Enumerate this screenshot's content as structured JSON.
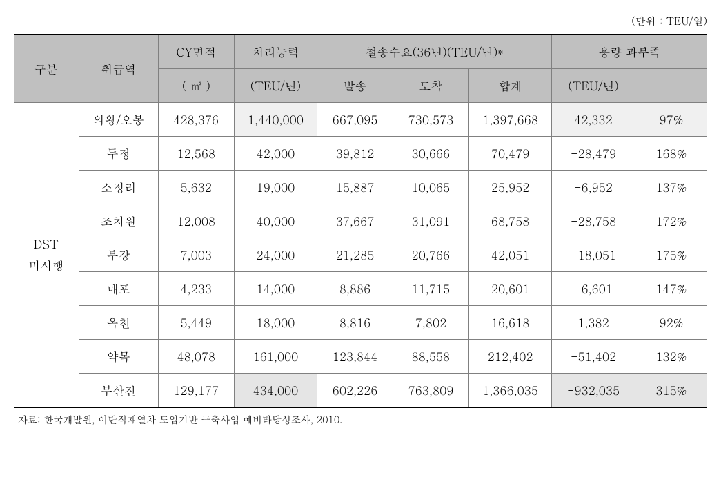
{
  "unit_label": "(단위 : TEU/일)",
  "headers": {
    "gubun": "구분",
    "station": "취급역",
    "cy_area": "CY면적",
    "cy_area_unit": "( ㎡ )",
    "capacity": "처리능력",
    "capacity_unit": "(TEU/년)",
    "demand_group": "철송수요(36년)(TEU/년)*",
    "demand_send": "발송",
    "demand_arrive": "도착",
    "demand_total": "합계",
    "surplus_group": "용량 과부족",
    "surplus_unit": "(TEU/년)"
  },
  "category": "DST\n미시행",
  "rows": [
    {
      "station": "의왕/오봉",
      "area": "428,376",
      "capacity": "1,440,000",
      "send": "667,095",
      "arrive": "730,573",
      "total": "1,397,668",
      "surplus_val": "42,332",
      "surplus_pct": "97%",
      "hl_capacity": true,
      "hl_surplus_val": true,
      "hl_surplus_pct": true,
      "light": true
    },
    {
      "station": "두정",
      "area": "12,568",
      "capacity": "42,000",
      "send": "39,812",
      "arrive": "30,666",
      "total": "70,479",
      "surplus_val": "-28,479",
      "surplus_pct": "168%"
    },
    {
      "station": "소정리",
      "area": "5,632",
      "capacity": "19,000",
      "send": "15,887",
      "arrive": "10,065",
      "total": "25,952",
      "surplus_val": "-6,952",
      "surplus_pct": "137%"
    },
    {
      "station": "조치원",
      "area": "12,008",
      "capacity": "40,000",
      "send": "37,667",
      "arrive": "31,091",
      "total": "68,758",
      "surplus_val": "-28,758",
      "surplus_pct": "172%"
    },
    {
      "station": "부강",
      "area": "7,003",
      "capacity": "24,000",
      "send": "21,285",
      "arrive": "20,766",
      "total": "42,051",
      "surplus_val": "-18,051",
      "surplus_pct": "175%"
    },
    {
      "station": "매포",
      "area": "4,233",
      "capacity": "14,000",
      "send": "8,886",
      "arrive": "11,715",
      "total": "20,601",
      "surplus_val": "-6,601",
      "surplus_pct": "147%"
    },
    {
      "station": "옥천",
      "area": "5,449",
      "capacity": "18,000",
      "send": "8,816",
      "arrive": "7,802",
      "total": "16,618",
      "surplus_val": "1,382",
      "surplus_pct": "92%"
    },
    {
      "station": "약목",
      "area": "48,078",
      "capacity": "161,000",
      "send": "123,844",
      "arrive": "88,558",
      "total": "212,402",
      "surplus_val": "-51,402",
      "surplus_pct": "132%"
    },
    {
      "station": "부산진",
      "area": "129,177",
      "capacity": "434,000",
      "send": "602,226",
      "arrive": "763,809",
      "total": "1,366,035",
      "surplus_val": "-932,035",
      "surplus_pct": "315%",
      "hl_capacity": true,
      "hl_surplus_val": true,
      "hl_surplus_pct": true
    }
  ],
  "source": "자료: 한국개발원, 이단적재열차 도입기반 구축사업 예비타당성조사, 2010."
}
